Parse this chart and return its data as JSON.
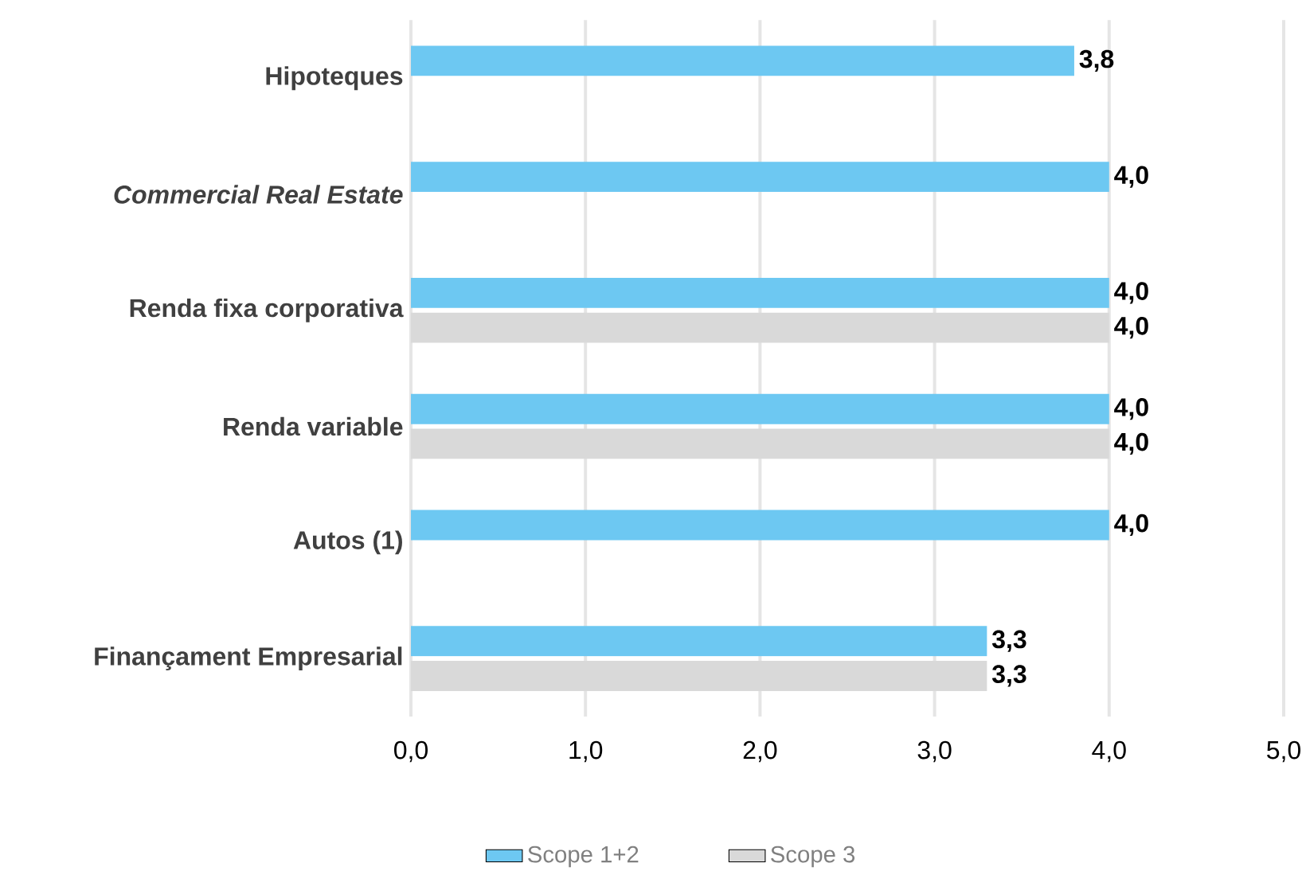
{
  "chart_data": {
    "type": "bar",
    "orientation": "horizontal",
    "categories": [
      "Hipoteques",
      "*Commercial Real Estate*",
      "Renda fixa corporativa",
      "Renda variable",
      "Autos (1)",
      "Finançament Empresarial"
    ],
    "series": [
      {
        "name": "Scope 1+2",
        "color": "#6dc8f2",
        "values": [
          3.8,
          4.0,
          4.0,
          4.0,
          4.0,
          3.3
        ],
        "value_labels": [
          "3,8",
          "4,0",
          "4,0",
          "4,0",
          "4,0",
          "3,3"
        ]
      },
      {
        "name": "Scope 3",
        "color": "#d9d9d9",
        "values": [
          null,
          null,
          4.0,
          4.0,
          null,
          3.3
        ],
        "value_labels": [
          null,
          null,
          "4,0",
          "4,0",
          null,
          "3,3"
        ]
      }
    ],
    "xlim": [
      0,
      5
    ],
    "xticks": [
      {
        "value": 0,
        "label": "0,0"
      },
      {
        "value": 1,
        "label": "1,0"
      },
      {
        "value": 2,
        "label": "2,0"
      },
      {
        "value": 3,
        "label": "3,0"
      },
      {
        "value": 4,
        "label": "4,0"
      },
      {
        "value": 5,
        "label": "5,0"
      }
    ],
    "grid": "x",
    "legend": "bottom"
  }
}
